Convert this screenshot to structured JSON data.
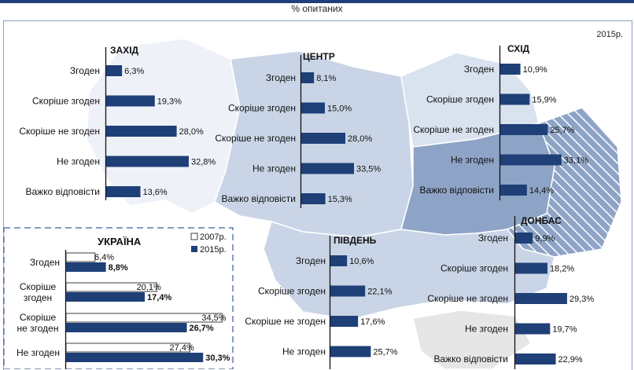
{
  "header": {
    "subtitle": "% опитаних",
    "year": "2015р."
  },
  "colors": {
    "bar_2015": "#1f3f77",
    "bar_2007": "#ffffff",
    "map_light": "#eef2f8",
    "map_mid": "#c9d5e7",
    "map_dark": "#8ea4c7"
  },
  "chart_data": [
    {
      "type": "bar",
      "title": "ЗАХІД",
      "categories": [
        "Згоден",
        "Скоріше згоден",
        "Скоріше не згоден",
        "Не згоден",
        "Важко відповісти"
      ],
      "series": [
        {
          "values": [
            6.3,
            19.3,
            28.0,
            32.8,
            13.6
          ]
        }
      ],
      "labels": [
        "6,3%",
        "19,3%",
        "28,0%",
        "32,8%",
        "13,6%"
      ]
    },
    {
      "type": "bar",
      "title": "ЦЕНТР",
      "categories": [
        "Згоден",
        "Скоріше згоден",
        "Скоріше не згоден",
        "Не згоден",
        "Важко відповісти"
      ],
      "series": [
        {
          "values": [
            8.1,
            15.0,
            28.0,
            33.5,
            15.3
          ]
        }
      ],
      "labels": [
        "8,1%",
        "15,0%",
        "28,0%",
        "33,5%",
        "15,3%"
      ]
    },
    {
      "type": "bar",
      "title": "СХІД",
      "categories": [
        "Згоден",
        "Скоріше згоден",
        "Скоріше не згоден",
        "Не згоден",
        "Важко відповісти"
      ],
      "series": [
        {
          "values": [
            10.9,
            15.9,
            25.7,
            33.1,
            14.4
          ]
        }
      ],
      "labels": [
        "10,9%",
        "15,9%",
        "25,7%",
        "33,1%",
        "14,4%"
      ]
    },
    {
      "type": "bar",
      "title": "ДОНБАС",
      "categories": [
        "Згоден",
        "Скоріше згоден",
        "Скоріше не згоден",
        "Не згоден",
        "Важко відповісти"
      ],
      "series": [
        {
          "values": [
            9.9,
            18.2,
            29.3,
            19.7,
            22.9
          ]
        }
      ],
      "labels": [
        "9,9%",
        "18,2%",
        "29,3%",
        "19,7%",
        "22,9%"
      ]
    },
    {
      "type": "bar",
      "title": "ПІВДЕНЬ",
      "categories": [
        "Згоден",
        "Скоріше згоден",
        "Скоріше не згоден",
        "Не згоден"
      ],
      "series": [
        {
          "values": [
            10.6,
            22.1,
            17.6,
            25.7
          ]
        }
      ],
      "labels": [
        "10,6%",
        "22,1%",
        "17,6%",
        "25,7%"
      ]
    },
    {
      "type": "bar",
      "title": "УКРАЇНА",
      "categories": [
        "Згоден",
        "Скоріше згоден",
        "Скоріше не згоден",
        "Не згоден"
      ],
      "series": [
        {
          "name": "2007р.",
          "values": [
            6.4,
            20.1,
            34.5,
            27.4
          ],
          "labels": [
            "6,4%",
            "20,1%",
            "34,5%",
            "27,4%"
          ]
        },
        {
          "name": "2015р.",
          "values": [
            8.8,
            17.4,
            26.7,
            30.3
          ],
          "labels": [
            "8,8%",
            "17,4%",
            "26,7%",
            "30,3%"
          ]
        }
      ]
    }
  ]
}
